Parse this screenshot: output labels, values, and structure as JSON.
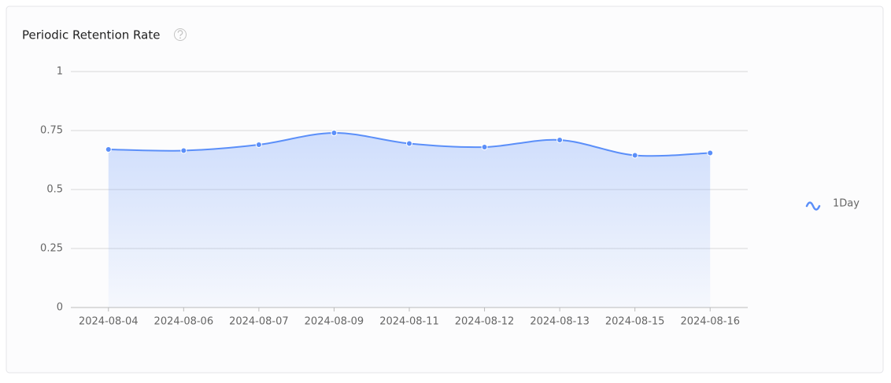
{
  "chart_data": {
    "type": "line",
    "title": "Periodic Retention Rate",
    "categories": [
      "2024-08-04",
      "2024-08-06",
      "2024-08-07",
      "2024-08-09",
      "2024-08-11",
      "2024-08-12",
      "2024-08-13",
      "2024-08-15",
      "2024-08-16"
    ],
    "series": [
      {
        "name": "1Day",
        "color": "#5b8ff9",
        "values": [
          0.67,
          0.665,
          0.69,
          0.74,
          0.695,
          0.68,
          0.71,
          0.645,
          0.655
        ]
      }
    ],
    "ylim": [
      0,
      1
    ],
    "yticks": [
      0,
      0.25,
      0.5,
      0.75,
      1
    ],
    "grid": true,
    "area": true,
    "smooth": true,
    "legend": "right"
  }
}
